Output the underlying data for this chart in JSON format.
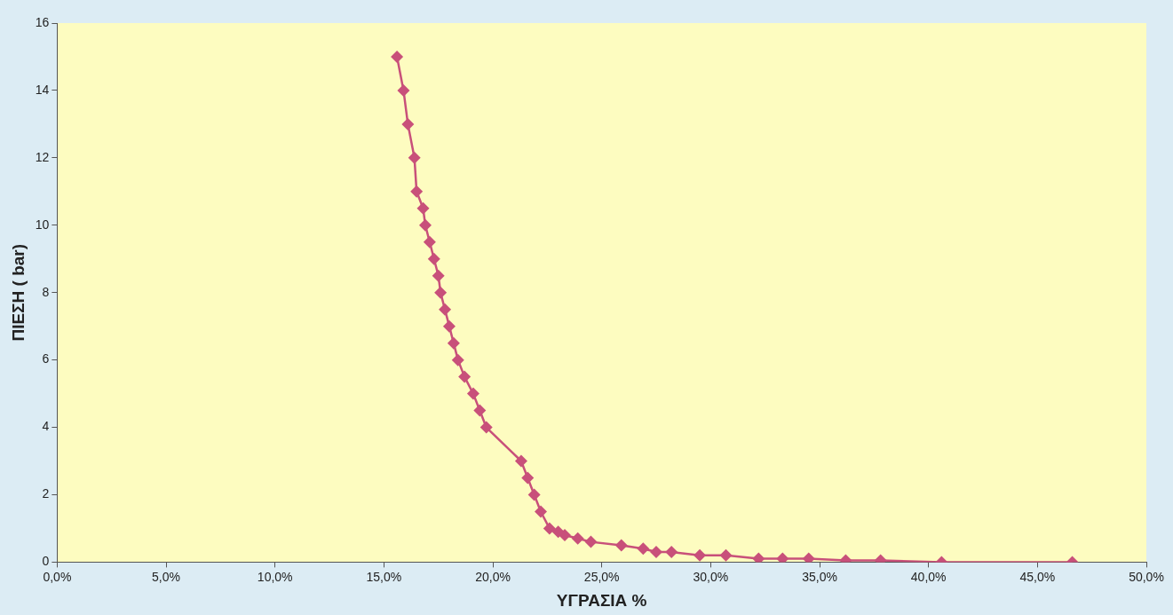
{
  "chart_data": {
    "type": "line",
    "xlabel": "ΥΓΡΑΣΙΑ %",
    "ylabel": "ΠΙΕΣΗ ( bar)",
    "x": [
      15.6,
      15.9,
      16.1,
      16.4,
      16.5,
      16.8,
      16.9,
      17.1,
      17.3,
      17.5,
      17.6,
      17.8,
      18.0,
      18.2,
      18.4,
      18.7,
      19.1,
      19.4,
      19.7,
      21.3,
      21.6,
      21.9,
      22.2,
      22.6,
      23.0,
      23.3,
      23.9,
      24.5,
      25.9,
      26.9,
      27.5,
      28.2,
      29.5,
      30.7,
      32.2,
      33.3,
      34.5,
      36.2,
      37.8,
      40.6,
      46.6
    ],
    "series": [
      {
        "color": "#c8507a",
        "values": [
          15,
          14,
          13,
          12,
          11,
          10.5,
          10,
          9.5,
          9,
          8.5,
          8,
          7.5,
          7,
          6.5,
          6,
          5.5,
          5,
          4.5,
          4,
          3,
          2.5,
          2,
          1.5,
          1,
          0.9,
          0.8,
          0.7,
          0.6,
          0.5,
          0.4,
          0.3,
          0.3,
          0.2,
          0.2,
          0.1,
          0.1,
          0.1,
          0.05,
          0.05,
          0,
          0
        ]
      }
    ],
    "xlim": [
      0,
      50
    ],
    "xticks": [
      {
        "value": 0,
        "label": "0,0%"
      },
      {
        "value": 5,
        "label": "5,0%"
      },
      {
        "value": 10,
        "label": "10,0%"
      },
      {
        "value": 15,
        "label": "15,0%"
      },
      {
        "value": 20,
        "label": "20,0%"
      },
      {
        "value": 25,
        "label": "25,0%"
      },
      {
        "value": 30,
        "label": "30,0%"
      },
      {
        "value": 35,
        "label": "35,0%"
      },
      {
        "value": 40,
        "label": "40,0%"
      },
      {
        "value": 45,
        "label": "45,0%"
      },
      {
        "value": 50,
        "label": "50,0%"
      }
    ],
    "ylim": [
      0,
      16
    ],
    "yticks": [
      0,
      2,
      4,
      6,
      8,
      10,
      12,
      14,
      16
    ],
    "grid": false,
    "legend": false,
    "marker": "diamond",
    "line_style": "solid"
  }
}
